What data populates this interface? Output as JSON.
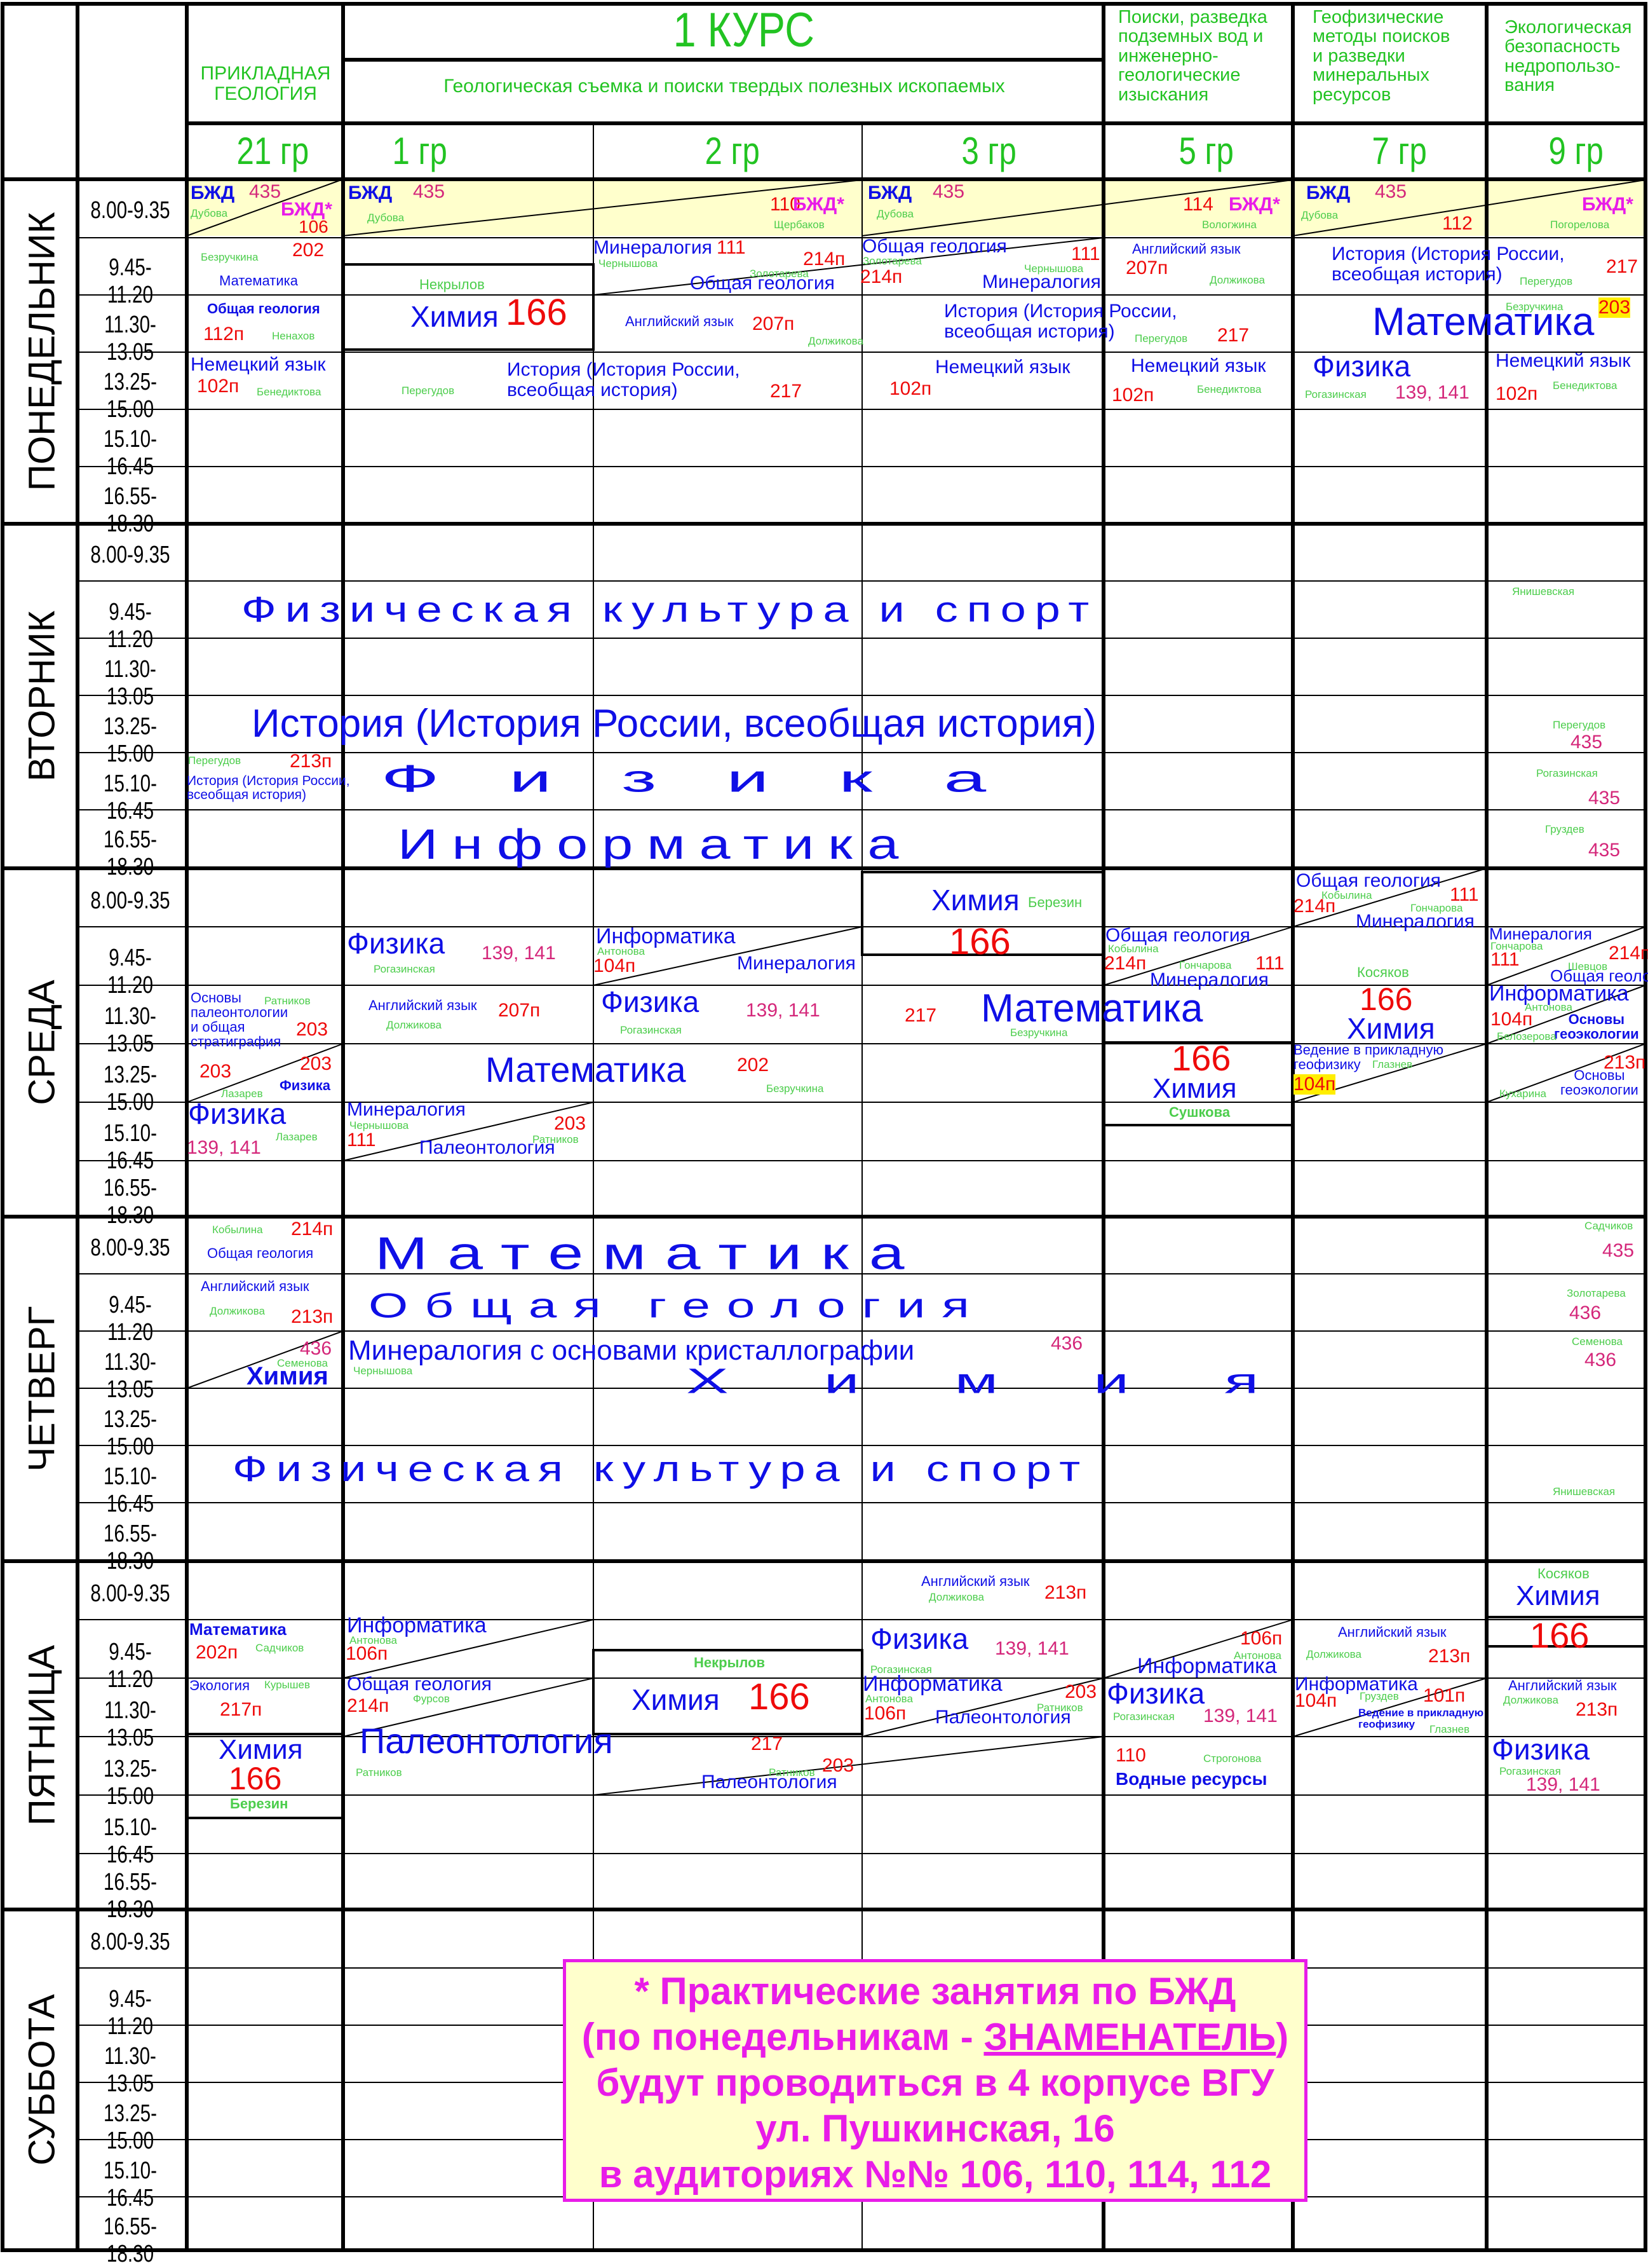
{
  "course_title": "1 КУРС",
  "specialties": [
    {
      "text": "ПРИКЛАДНАЯ\nГЕОЛОГИЯ"
    },
    {
      "text": "Геологическая съемка и поиски твердых полезных ископаемых"
    },
    {
      "text": "Поиски, разведка\nподземных вод и\nинженерно-\nгеологические\nизыскания"
    },
    {
      "text": "Геофизические\nметоды поисков\nи разведки\nминеральных\nресурсов"
    },
    {
      "text": "Экологическая\nбезопасность\nнедропользо-\nвания"
    }
  ],
  "groups": [
    "21 гр",
    "1 гр",
    "2 гр",
    "3 гр",
    "5 гр",
    "7 гр",
    "9 гр"
  ],
  "days": [
    "ПОНЕДЕЛЬНИК",
    "ВТОРНИК",
    "СРЕДА",
    "ЧЕТВЕРГ",
    "ПЯТНИЦА",
    "СУББОТА"
  ],
  "times": [
    "8.00-9.35",
    "9.45-11.20",
    "11.30-13.05",
    "13.25-15.00",
    "15.10-16.45",
    "16.55-18.30"
  ],
  "colors": {
    "green": "#22c322",
    "blue": "#0f0fe6",
    "red": "#ee0a0a",
    "magenta": "#d4277a",
    "pink": "#e81ce8",
    "cream": "#ffffcc",
    "yellow": "#ffee00"
  },
  "mon": {
    "bjd": "БЖД",
    "bjd_star": "БЖД*",
    "r435": "435",
    "r110": "110",
    "r114": "114",
    "r112": "112",
    "r106": "106",
    "dubova": "Дубова",
    "scherbakov": "Щербаков",
    "vologzhina": "Вологжина",
    "pogorelova": "Погорелова",
    "g21_math_t": "Безручкина",
    "g21_math_r": "202",
    "g21_math": "Математика",
    "g21_geo": "Общая геология",
    "g21_geo_r": "112п",
    "g21_geo_t": "Ненахов",
    "g21_ger": "Немецкий язык",
    "g21_ger_r": "102п",
    "g21_ger_t": "Бенедиктова",
    "g1_nekr": "Некрылов",
    "g1_chem": "Химия",
    "g1_chem_r": "166",
    "g2_min": "Минералогия",
    "g2_min_r": "111",
    "g2_min_t": "Чернышова",
    "g2_geo": "Общая геология",
    "g2_geo_r": "214п",
    "g2_geo_t": "Золотарева",
    "g2_eng": "Английский язык",
    "g2_eng_r": "207п",
    "g2_eng_t": "Должикова",
    "g3_geo": "Общая геология",
    "g3_geo_t": "Золотарева",
    "g3_geo_r": "214п",
    "g3_min": "Минералогия",
    "g3_min_r": "111",
    "g3_min_t": "Чернышова",
    "hist": "История (История России,\nвсеобщая история)",
    "hist_r": "217",
    "hist_t": "Перегудов",
    "g12_pereg": "Перегудов",
    "g3_ger": "Немецкий язык",
    "g3_ger_r": "102п",
    "g5_eng": "Английский язык",
    "g5_eng_r": "207п",
    "g5_eng_t": "Должикова",
    "g5_ger": "Немецкий язык",
    "g5_ger_r": "102п",
    "g5_ger_t": "Бенедиктова",
    "g79_hist": "История (История России,\nвсеобщая история)",
    "g79_hist_r": "217",
    "g79_hist_t": "Перегудов",
    "g79_math": "Математика",
    "g79_math_t": "Безручкина",
    "g79_math_r": "203",
    "g7_phys": "Физика",
    "g7_phys_t": "Рогазинская",
    "g7_phys_r": "139, 141",
    "g9_ger": "Немецкий язык",
    "g9_ger_r": "102п",
    "g9_ger_t": "Бенедиктова"
  },
  "tue": {
    "pe": "Физическая культура и спорт",
    "pe_t": "Янишевская",
    "hist": "История (История России, всеобщая история)",
    "hist_t": "Перегудов",
    "hist_r": "435",
    "g21_hist_t": "Перегудов",
    "g21_hist_r": "213п",
    "g21_hist": "История (История России,\nвсеобщая история)",
    "phys": "Физика",
    "phys_t": "Рогазинская",
    "phys_r": "435",
    "inf": "Информатика",
    "inf_t": "Груздев",
    "inf_r": "435"
  },
  "wed": {
    "g3_chem": "Химия",
    "g3_chem_t": "Березин",
    "g3_chem_r": "166",
    "g1_phys": "Физика",
    "g1_phys_t": "Рогазинская",
    "g1_phys_r": "139, 141",
    "g2_inf": "Информатика",
    "g2_inf_t": "Антонова",
    "g2_inf_r": "104п",
    "g2_min": "Минералогия",
    "g5_geo": "Общая геология",
    "g5_geo_t": "Кобылина",
    "g5_geo_r": "214п",
    "g5_min_t": "Гончарова",
    "g5_min_r": "111",
    "g5_min": "Минералогия",
    "g7_geo": "Общая геология",
    "g7_geo_t": "Кобылина",
    "g7_geo_r": "214п",
    "g7_min_t": "Гончарова",
    "g7_min_r": "111",
    "g7_min": "Минералогия",
    "g9_min": "Минералогия",
    "g9_min_t": "Гончарова",
    "g9_min_r": "214п",
    "g9_geo_r": "111",
    "g9_geo_t": "Шевцов",
    "g9_geo": "Общая геология",
    "g21_osn": "Основы\nпалеонтологии\nи общая\nстратиграфия",
    "g21_osn_t": "Ратников",
    "g21_osn_r": "203",
    "g21_osn_r2": "203",
    "g21_lazarev": "Лазарев",
    "g21_phys_small": "Физика",
    "g21_r203b": "203",
    "g1_eng": "Английский язык",
    "g1_eng_t": "Должикова",
    "g1_eng_r": "207п",
    "g2_phys": "Физика",
    "g2_phys_t": "Рогазинская",
    "g2_phys_r": "139, 141",
    "g3_r217": "217",
    "g35_math": "Математика",
    "g35_math_t": "Безручкина",
    "g7_kos": "Косяков",
    "g7_chem_r": "166",
    "g7_chem": "Химия",
    "g9_inf": "Информатика",
    "g9_inf_t": "Антонова",
    "g9_inf_r": "104п",
    "g9_osn": "Основы\nгеоэкологии",
    "g9_osn_t": "Белозерова",
    "g12_math": "Математика",
    "g12_math_r": "202",
    "g12_math_t": "Безручкина",
    "g5_chem_r": "166",
    "g5_chem": "Химия",
    "g5_chem_t": "Сушкова",
    "g7_ved": "Ведение в прикладную\nгеофизику",
    "g7_ved_t": "Глазнев",
    "g7_ved_r": "104п",
    "g9_osn2": "Основы\nгеоэкологии",
    "g9_osn2_r": "213п",
    "g9_osn2_t": "Кухарина",
    "g21_phys": "Физика",
    "g21_phys_r": "139, 141",
    "g21_phys_t": "Лазарев",
    "g1_min": "Минералогия",
    "g1_min_t": "Чернышова",
    "g1_min_r": "111",
    "g1_pal": "Палеонтология",
    "g1_pal_r": "203",
    "g1_pal_t": "Ратников"
  },
  "thu": {
    "math": "Математика",
    "math_t": "Садчиков",
    "math_r": "435",
    "geo": "Общая геология",
    "geo_t": "Золотарева",
    "geo_r": "436",
    "chem": "Химия",
    "chem_t": "Семенова",
    "chem_r": "436",
    "min": "Минералогия с основами кристаллографии",
    "min_r": "436",
    "min_t": "Чернышова",
    "pe": "Физическая культура и спорт",
    "pe_t": "Янишевская",
    "g21_geo_t": "Кобылина",
    "g21_geo_r": "214п",
    "g21_geo": "Общая геология",
    "g21_eng": "Английский язык",
    "g21_eng_t": "Должикова",
    "g21_eng_r": "213п",
    "g21_r436": "436",
    "g21_sem": "Семенова",
    "g21_chem": "Химия"
  },
  "fri": {
    "g21_math": "Математика",
    "g21_math_r": "202п",
    "g21_math_t": "Садчиков",
    "g21_eco": "Экология",
    "g21_eco_t": "Курышев",
    "g21_eco_r": "217п",
    "g21_chem": "Химия",
    "g21_chem_r": "166",
    "g21_chem_t": "Березин",
    "g1_inf": "Информатика",
    "g1_inf_t": "Антонова",
    "g1_inf_r": "106п",
    "g1_geo": "Общая геология",
    "g1_geo_t": "Фурсов",
    "g1_geo_r": "214п",
    "g12_pal": "Палеонтология",
    "g12_pal_t": "Ратников",
    "g12_pal_r": "217",
    "g2_nekr": "Некрылов",
    "g2_chem": "Химия",
    "g2_chem_r": "166",
    "g23_pal": "Палеонтология",
    "g23_pal_r": "203",
    "g23_pal_t": "Ратников",
    "g3_eng": "Английский язык",
    "g3_eng_t": "Должикова",
    "g3_eng_r": "213п",
    "g3_phys": "Физика",
    "g3_phys_t": "Рогазинская",
    "g3_phys_r": "139, 141",
    "g3_inf": "Информатика",
    "g3_inf_t": "Антонова",
    "g3_inf_r": "106п",
    "g3_pal": "Палеонтология",
    "g3_pal_r": "203",
    "g3_pal_t": "Ратников",
    "g5_inf_r": "106п",
    "g5_inf_t": "Антонова",
    "g5_inf": "Информатика",
    "g5_phys": "Физика",
    "g5_phys_t": "Рогазинская",
    "g5_phys_r": "139, 141",
    "g5_water_r": "110",
    "g5_water_t": "Строгонова",
    "g5_water": "Водные ресурсы",
    "g7_eng": "Английский язык",
    "g7_eng_t": "Должикова",
    "g7_eng_r": "213п",
    "g7_inf": "Информатика",
    "g7_inf_t": "Груздев",
    "g7_inf_r": "104п",
    "g7_ved": "Ведение в прикладную\nгеофизику",
    "g7_ved_t": "Глазнев",
    "g7_ved_r": "101п",
    "g9_kos": "Косяков",
    "g9_chem": "Химия",
    "g9_chem_r": "166",
    "g9_eng": "Английский язык",
    "g9_eng_t": "Должикова",
    "g9_eng_r": "213п",
    "g9_phys": "Физика",
    "g9_phys_t": "Рогазинская",
    "g9_phys_r": "139, 141"
  },
  "note": {
    "line1": "* Практические занятия по БЖД",
    "line2a": "(по понедельникам - ",
    "line2b": "ЗНАМЕНАТЕЛЬ",
    "line2c": ")",
    "line3": "будут проводиться в 4 корпусе ВГУ",
    "line4": "ул. Пушкинская, 16",
    "line5": "в аудиториях №№ 106, 110, 114, 112"
  }
}
